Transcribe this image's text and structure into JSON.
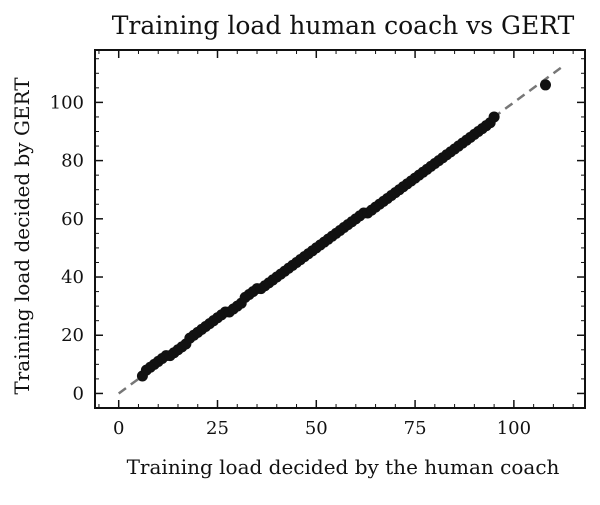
{
  "chart_data": {
    "type": "scatter",
    "title": "Training load human coach vs GERT",
    "xlabel": "Training load decided by the human coach",
    "ylabel": "Training load decided by GERT",
    "xlim": [
      -6,
      118
    ],
    "ylim": [
      -5,
      118
    ],
    "x_ticks": [
      0,
      25,
      50,
      75,
      100
    ],
    "y_ticks": [
      0,
      20,
      40,
      60,
      80,
      100
    ],
    "grid": false,
    "legend": "none",
    "colors": {
      "points": "#111111",
      "reference_line": "#777777",
      "axes": "#111111"
    },
    "series": [
      {
        "x": [
          6,
          7,
          8,
          9,
          10,
          11,
          12,
          13,
          14,
          15,
          16,
          17,
          18,
          19,
          20,
          21,
          22,
          23,
          24,
          25,
          26,
          27,
          28,
          29,
          30,
          31,
          32,
          33,
          34,
          35,
          36,
          37,
          38,
          39,
          40,
          41,
          42,
          43,
          44,
          45,
          46,
          47,
          48,
          49,
          50,
          51,
          52,
          53,
          54,
          55,
          56,
          57,
          58,
          59,
          60,
          61,
          62,
          63,
          64,
          65,
          66,
          67,
          68,
          69,
          70,
          71,
          72,
          73,
          74,
          75,
          76,
          77,
          78,
          79,
          80,
          81,
          82,
          83,
          84,
          85,
          86,
          87,
          88,
          89,
          90,
          91,
          92,
          93,
          94,
          95,
          108
        ],
        "y": [
          6,
          8,
          9,
          10,
          11,
          12,
          13,
          13,
          14,
          15,
          16,
          17,
          19,
          20,
          21,
          22,
          23,
          24,
          25,
          26,
          27,
          28,
          28,
          29,
          30,
          31,
          33,
          34,
          35,
          36,
          36,
          37,
          38,
          39,
          40,
          41,
          42,
          43,
          44,
          45,
          46,
          47,
          48,
          49,
          50,
          51,
          52,
          53,
          54,
          55,
          56,
          57,
          58,
          59,
          60,
          61,
          62,
          62,
          63,
          64,
          65,
          66,
          67,
          68,
          69,
          70,
          71,
          72,
          73,
          74,
          75,
          76,
          77,
          78,
          79,
          80,
          81,
          82,
          83,
          84,
          85,
          86,
          87,
          88,
          89,
          90,
          91,
          92,
          93,
          95,
          106
        ]
      }
    ],
    "reference_line": {
      "style": "dashed",
      "x": [
        0,
        113
      ],
      "y": [
        0,
        113
      ]
    }
  }
}
